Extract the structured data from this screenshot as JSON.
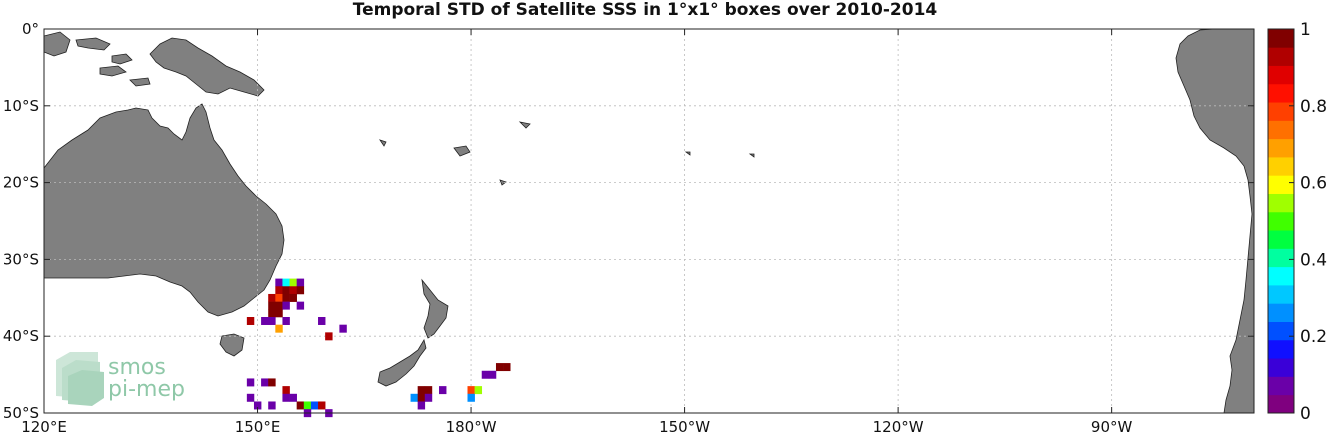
{
  "title": "Temporal STD of Satellite SSS in 1°x1° boxes over 2010-2014",
  "map": {
    "lon_range": [
      120,
      290
    ],
    "lat_range": [
      -50,
      0
    ],
    "lon_ticks": [
      {
        "lon": 120,
        "label": "120°E"
      },
      {
        "lon": 150,
        "label": "150°E"
      },
      {
        "lon": 180,
        "label": "180°W"
      },
      {
        "lon": 210,
        "label": "150°W"
      },
      {
        "lon": 240,
        "label": "120°W"
      },
      {
        "lon": 270,
        "label": "90°W"
      }
    ],
    "lat_ticks": [
      {
        "lat": 0,
        "label": "0°"
      },
      {
        "lat": -10,
        "label": "10°S"
      },
      {
        "lat": -20,
        "label": "20°S"
      },
      {
        "lat": -30,
        "label": "30°S"
      },
      {
        "lat": -40,
        "label": "40°S"
      },
      {
        "lat": -50,
        "label": "50°S"
      }
    ],
    "grid": true,
    "land_color": "#808080",
    "ocean_color": "#ffffff",
    "colormap": "jet-like, 0 to 1",
    "colorbar": {
      "min": 0,
      "max": 1,
      "ticks": [
        "0",
        "0.2",
        "0.4",
        "0.6",
        "0.8",
        "1"
      ],
      "colors": [
        "#7f007f",
        "#6a00a8",
        "#3a00d8",
        "#1010ff",
        "#0050ff",
        "#0090ff",
        "#00c8ff",
        "#00ffff",
        "#00ffa0",
        "#00ff40",
        "#40ff00",
        "#a0ff00",
        "#ffff00",
        "#ffd000",
        "#ffa000",
        "#ff7000",
        "#ff4000",
        "#ff1000",
        "#e00000",
        "#b00000",
        "#800000"
      ]
    },
    "cells": [
      {
        "lon": 153,
        "lat": -33,
        "std": 0.05
      },
      {
        "lon": 154,
        "lat": -33,
        "std": 0.35
      },
      {
        "lon": 155,
        "lat": -33,
        "std": 0.55
      },
      {
        "lon": 156,
        "lat": -33,
        "std": 0.05
      },
      {
        "lon": 153,
        "lat": -34,
        "std": 0.95
      },
      {
        "lon": 154,
        "lat": -34,
        "std": 1.0
      },
      {
        "lon": 155,
        "lat": -34,
        "std": 0.95
      },
      {
        "lon": 156,
        "lat": -34,
        "std": 1.0
      },
      {
        "lon": 152,
        "lat": -35,
        "std": 0.95
      },
      {
        "lon": 153,
        "lat": -35,
        "std": 0.8
      },
      {
        "lon": 154,
        "lat": -35,
        "std": 1.0
      },
      {
        "lon": 155,
        "lat": -35,
        "std": 1.0
      },
      {
        "lon": 152,
        "lat": -36,
        "std": 1.0
      },
      {
        "lon": 153,
        "lat": -36,
        "std": 1.0
      },
      {
        "lon": 154,
        "lat": -36,
        "std": 0.05
      },
      {
        "lon": 156,
        "lat": -36,
        "std": 0.05
      },
      {
        "lon": 152,
        "lat": -37,
        "std": 1.0
      },
      {
        "lon": 153,
        "lat": -37,
        "std": 1.0
      },
      {
        "lon": 149,
        "lat": -38,
        "std": 0.95
      },
      {
        "lon": 151,
        "lat": -38,
        "std": 0.05
      },
      {
        "lon": 152,
        "lat": -38,
        "std": 0.05
      },
      {
        "lon": 154,
        "lat": -38,
        "std": 0.05
      },
      {
        "lon": 159,
        "lat": -38,
        "std": 0.05
      },
      {
        "lon": 153,
        "lat": -39,
        "std": 0.7
      },
      {
        "lon": 162,
        "lat": -39,
        "std": 0.05
      },
      {
        "lon": 160,
        "lat": -40,
        "std": 0.95
      },
      {
        "lon": 184,
        "lat": -44,
        "std": 1.0
      },
      {
        "lon": 185,
        "lat": -44,
        "std": 1.0
      },
      {
        "lon": 182,
        "lat": -45,
        "std": 0.05
      },
      {
        "lon": 183,
        "lat": -45,
        "std": 0.05
      },
      {
        "lon": 149,
        "lat": -46,
        "std": 0.05
      },
      {
        "lon": 151,
        "lat": -46,
        "std": 0.05
      },
      {
        "lon": 152,
        "lat": -46,
        "std": 1.0
      },
      {
        "lon": 154,
        "lat": -47,
        "std": 0.95
      },
      {
        "lon": 173,
        "lat": -47,
        "std": 1.0
      },
      {
        "lon": 174,
        "lat": -47,
        "std": 1.0
      },
      {
        "lon": 176,
        "lat": -47,
        "std": 0.05
      },
      {
        "lon": 180,
        "lat": -47,
        "std": 0.8
      },
      {
        "lon": 181,
        "lat": -47,
        "std": 0.55
      },
      {
        "lon": 149,
        "lat": -48,
        "std": 0.05
      },
      {
        "lon": 154,
        "lat": -48,
        "std": 0.05
      },
      {
        "lon": 155,
        "lat": -48,
        "std": 0.05
      },
      {
        "lon": 172,
        "lat": -48,
        "std": 0.25
      },
      {
        "lon": 173,
        "lat": -48,
        "std": 1.0
      },
      {
        "lon": 174,
        "lat": -48,
        "std": 0.05
      },
      {
        "lon": 180,
        "lat": -48,
        "std": 0.25
      },
      {
        "lon": 150,
        "lat": -49,
        "std": 0.05
      },
      {
        "lon": 152,
        "lat": -49,
        "std": 0.05
      },
      {
        "lon": 156,
        "lat": -49,
        "std": 1.0
      },
      {
        "lon": 157,
        "lat": -49,
        "std": 0.5
      },
      {
        "lon": 158,
        "lat": -49,
        "std": 0.2
      },
      {
        "lon": 159,
        "lat": -49,
        "std": 0.95
      },
      {
        "lon": 173,
        "lat": -49,
        "std": 0.05
      },
      {
        "lon": 157,
        "lat": -50,
        "std": 0.05
      },
      {
        "lon": 160,
        "lat": -50,
        "std": 0.05
      }
    ]
  },
  "logo": {
    "line1": "smos",
    "line2": "pi-mep"
  }
}
